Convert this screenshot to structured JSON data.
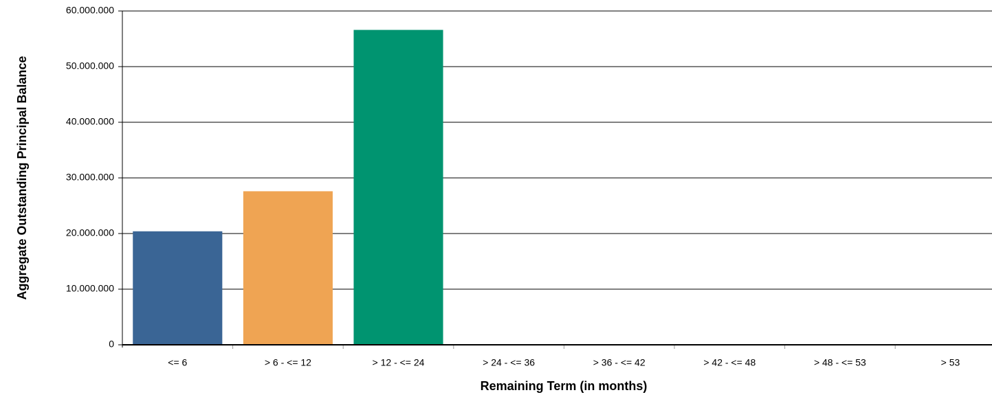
{
  "chart_data": {
    "type": "bar",
    "x_label": "Remaining Term (in months)",
    "y_label": "Aggregate Outstanding Principal Balance",
    "categories": [
      "<= 6",
      "> 6 - <= 12",
      "> 12 - <= 24",
      "> 24 - <= 36",
      "> 36 - <= 42",
      "> 42 - <= 48",
      "> 48 - <= 53",
      "> 53"
    ],
    "values": [
      20400000,
      27600000,
      56600000,
      0,
      0,
      0,
      0,
      0
    ],
    "colors": [
      "#3a6595",
      "#efa453",
      "#009470",
      "#3a6595",
      "#3a6595",
      "#3a6595",
      "#3a6595",
      "#3a6595"
    ],
    "ylim": [
      0,
      60000000
    ],
    "yticks": [
      0,
      {
        "value": 10000000,
        "label": "10.000.000"
      },
      {
        "value": 20000000,
        "label": "20.000.000"
      },
      {
        "value": 30000000,
        "label": "30.000.000"
      },
      {
        "value": 40000000,
        "label": "40.000.000"
      },
      {
        "value": 50000000,
        "label": "50.000.000"
      },
      {
        "value": 60000000,
        "label": "60.000.000"
      }
    ],
    "grid": true
  }
}
